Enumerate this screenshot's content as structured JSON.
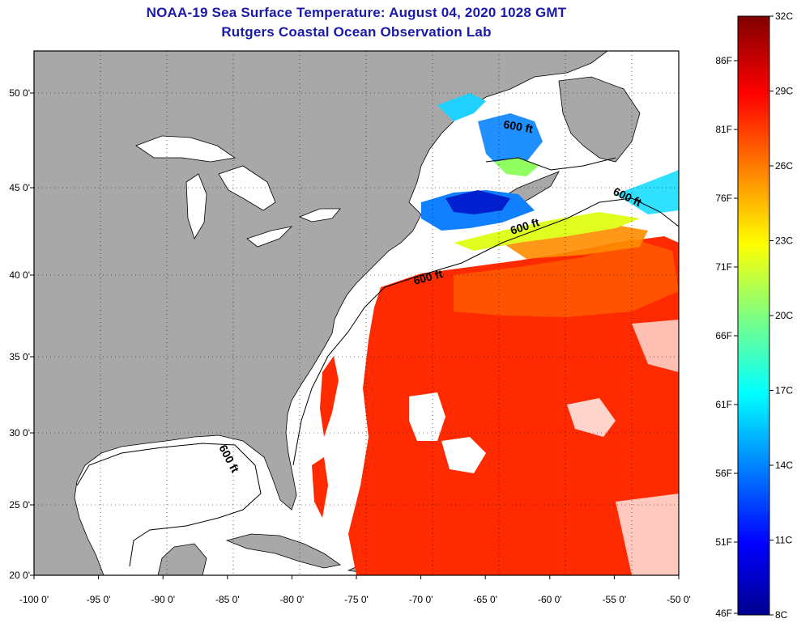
{
  "header": {
    "title": "NOAA-19 Sea Surface Temperature:  August 04, 2020 1028 GMT",
    "subtitle": "Rutgers Coastal Ocean Observation Lab"
  },
  "map": {
    "lon_range": [
      -100,
      -50
    ],
    "lat_range": [
      20,
      52.5
    ],
    "lon_ticks": [
      "-100 0'",
      "-95 0'",
      "-90 0'",
      "-85 0'",
      "-80 0'",
      "-75 0'",
      "-70 0'",
      "-65 0'",
      "-60 0'",
      "-55 0'",
      "-50 0'"
    ],
    "lat_ticks": [
      "20 0'",
      "25 0'",
      "30 0'",
      "35 0'",
      "40 0'",
      "45 0'",
      "50 0'"
    ],
    "isobath_label": "600 ft",
    "land_color": "#a8a8a8",
    "no_data_color": "#ffffff"
  },
  "colorbar": {
    "celsius_labels": [
      "32C",
      "29C",
      "26C",
      "23C",
      "20C",
      "17C",
      "14C",
      "11C",
      "8C"
    ],
    "fahrenheit_labels": [
      "86F",
      "81F",
      "76F",
      "71F",
      "66F",
      "61F",
      "56F",
      "51F",
      "46F"
    ]
  }
}
